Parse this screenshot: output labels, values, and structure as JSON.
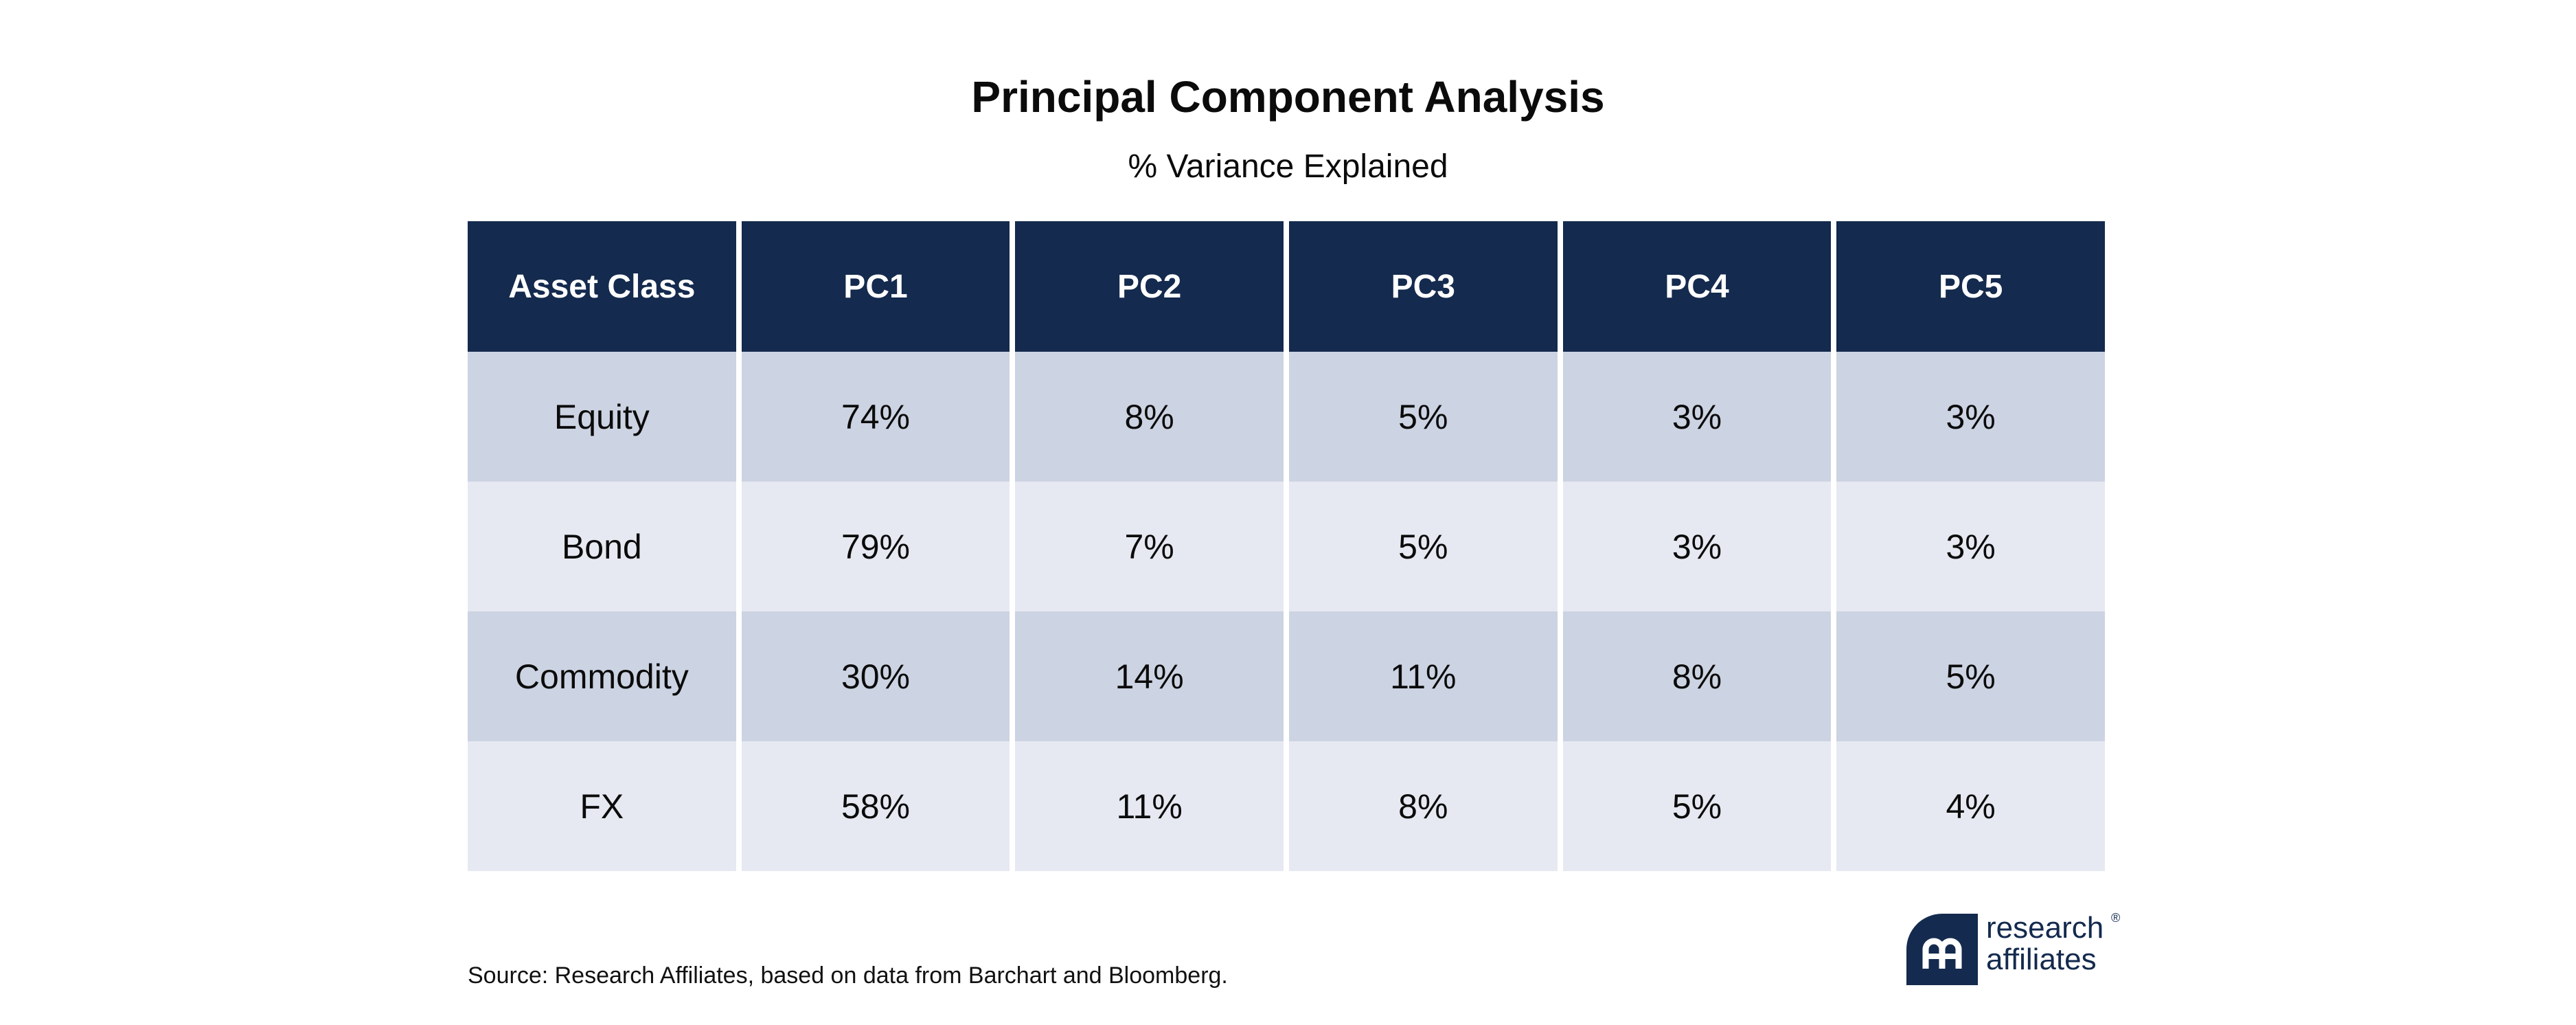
{
  "chart_data": {
    "type": "table",
    "title": "Principal Component Analysis",
    "subtitle": "% Variance Explained",
    "columns": [
      "Asset Class",
      "PC1",
      "PC2",
      "PC3",
      "PC4",
      "PC5"
    ],
    "rows": [
      [
        "Equity",
        "74%",
        "8%",
        "5%",
        "3%",
        "3%"
      ],
      [
        "Bond",
        "79%",
        "7%",
        "5%",
        "3%",
        "3%"
      ],
      [
        "Commodity",
        "30%",
        "14%",
        "11%",
        "8%",
        "5%"
      ],
      [
        "FX",
        "58%",
        "11%",
        "8%",
        "5%",
        "4%"
      ]
    ]
  },
  "footer": {
    "source": "Source: Research Affiliates, based on data from Barchart and Bloomberg."
  },
  "logo": {
    "line1": "research",
    "line2": "affiliates",
    "mark": "®",
    "icon": "research-affiliates-logo-icon"
  },
  "colors": {
    "header_bg": "#142a4e",
    "row_dark": "#ccd3e2",
    "row_light": "#e6e9f1"
  }
}
